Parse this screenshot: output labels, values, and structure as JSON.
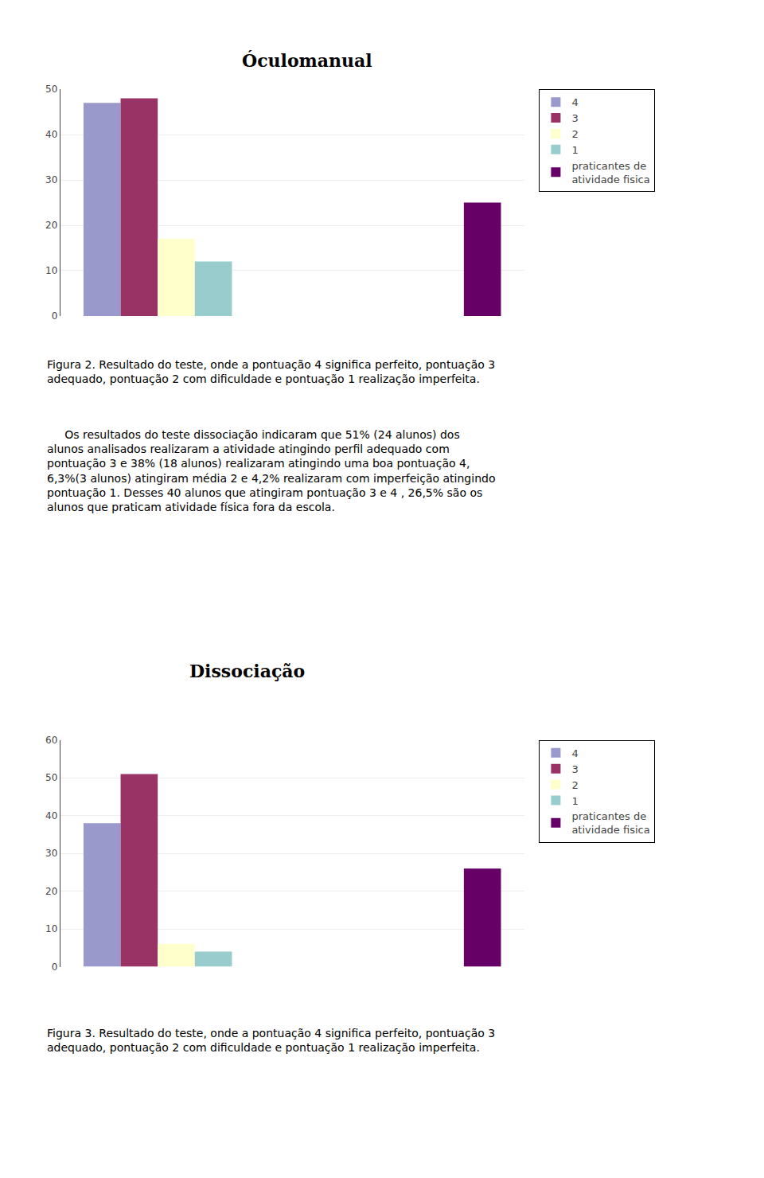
{
  "chart_data": [
    {
      "type": "bar",
      "title": "Óculomanual",
      "categories": [
        null,
        null
      ],
      "series": [
        {
          "name": "4",
          "color": "#9999CC",
          "values": [
            47,
            null
          ]
        },
        {
          "name": "3",
          "color": "#993366",
          "values": [
            48,
            null
          ]
        },
        {
          "name": "2",
          "color": "#FFFFCC",
          "values": [
            17,
            null
          ]
        },
        {
          "name": "1",
          "color": "#99CCCC",
          "values": [
            12,
            null
          ]
        },
        {
          "name": "praticantes de\natividade fisica",
          "color": "#660066",
          "values": [
            null,
            25
          ]
        }
      ],
      "ylim": [
        0,
        50
      ],
      "yticks": [
        0,
        10,
        20,
        30,
        40,
        50
      ],
      "grid": true,
      "legend": "upper right",
      "tick_labels": "y",
      "annotations": [
        "Figura 2. Resultado do teste, onde a pontuação 4 significa perfeito, pontuação 3\nadequado, pontuação 2 com dificuldade e pontuação 1 realização imperfeita.",
        "     Os resultados do teste dissociação indicaram que 51% (24 alunos) dos\nalunos analisados realizaram a atividade atingindo perfil adequado com\npontuação 3 e 38% (18 alunos) realizaram atingindo uma boa pontuação 4,\n6,3%(3 alunos) atingiram média 2 e 4,2% realizaram com imperfeição atingindo\npontuação 1. Desses 40 alunos que atingiram pontuação 3 e 4 , 26,5% são os\nalunos que praticam atividade física fora da escola."
      ]
    },
    {
      "type": "bar",
      "title": "Dissociação",
      "categories": [
        null,
        null
      ],
      "series": [
        {
          "name": "4",
          "color": "#9999CC",
          "values": [
            38,
            null
          ]
        },
        {
          "name": "3",
          "color": "#993366",
          "values": [
            51,
            null
          ]
        },
        {
          "name": "2",
          "color": "#FFFFCC",
          "values": [
            6,
            null
          ]
        },
        {
          "name": "1",
          "color": "#99CCCC",
          "values": [
            4,
            null
          ]
        },
        {
          "name": "praticantes de\natividade fisica",
          "color": "#660066",
          "values": [
            null,
            26
          ]
        }
      ],
      "ylim": [
        0,
        60
      ],
      "yticks": [
        0,
        10,
        20,
        30,
        40,
        50,
        60
      ],
      "grid": true,
      "legend": "upper right",
      "tick_labels": "y",
      "annotations": [
        "Figura 3. Resultado do teste, onde a pontuação 4 significa perfeito, pontuação 3\nadequado, pontuação 2 com dificuldade e pontuação 1 realização imperfeita."
      ]
    }
  ]
}
